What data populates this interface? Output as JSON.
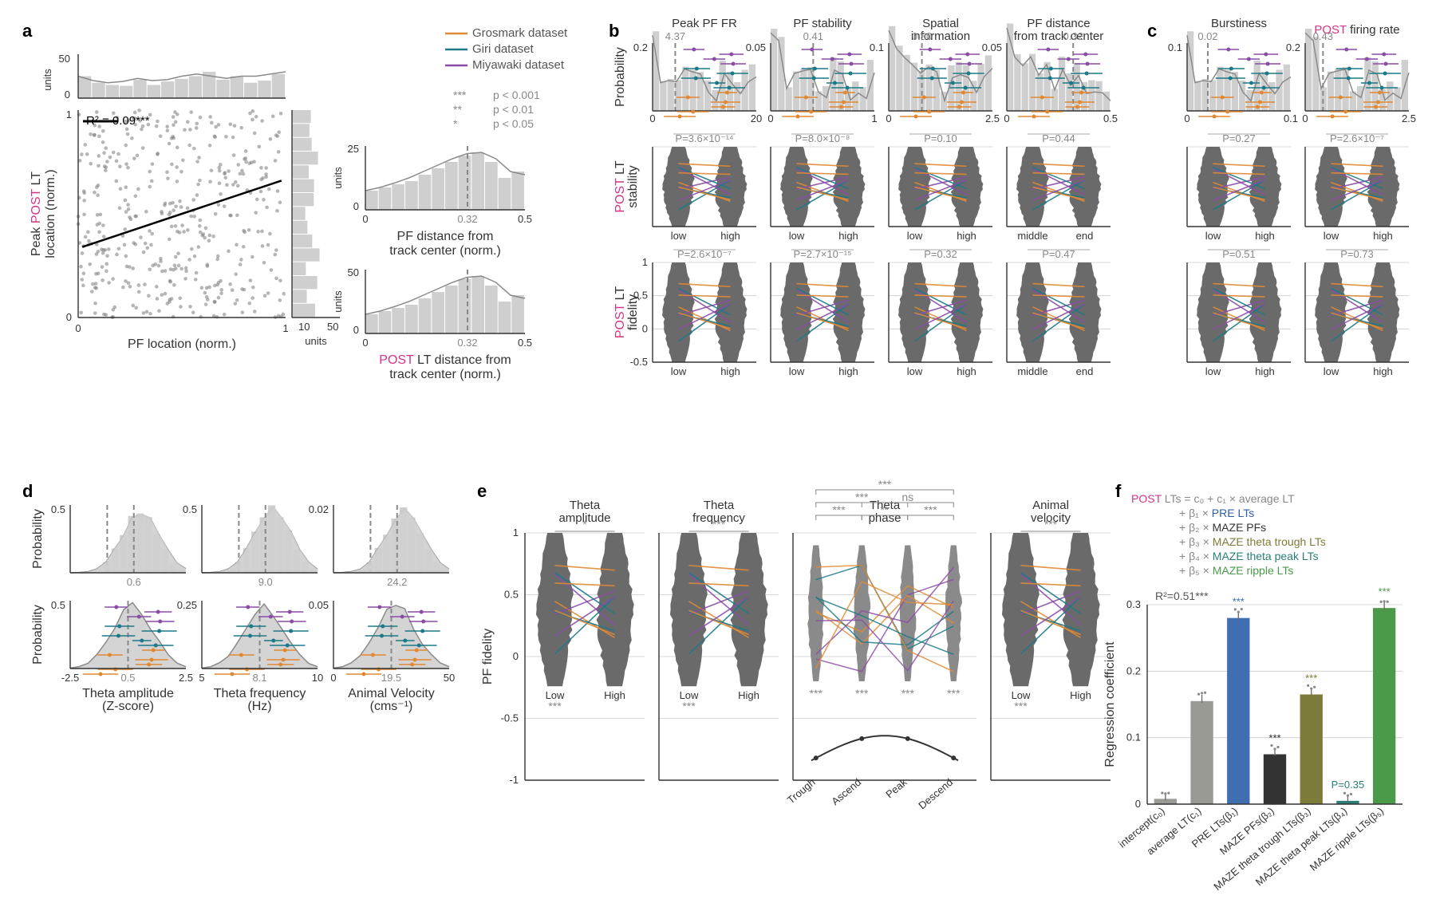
{
  "colors": {
    "grosmark": "#e08934",
    "giri": "#1c7a88",
    "miyawaki": "#8a4da6",
    "post": "#d63384",
    "pre": "#2f5ea8",
    "grey_light": "#cfcfcf",
    "grey_med": "#8a8a8a",
    "grey_dark": "#6a6a6a",
    "bar_grey": "#9a9a94",
    "bar_blue": "#3f6fb0",
    "bar_dark": "#333333",
    "bar_olive": "#7d7b3a",
    "bar_teal": "#2a7f75",
    "bar_green": "#4a9a4a"
  },
  "legend": {
    "items": [
      {
        "label": "Grosmark dataset",
        "color": "#e08934"
      },
      {
        "label": "Giri dataset",
        "color": "#1c7a88"
      },
      {
        "label": "Miyawaki dataset",
        "color": "#8a4da6"
      }
    ],
    "sig_rows": [
      {
        "stars": "***",
        "text": "p < 0.001"
      },
      {
        "stars": "**",
        "text": "p < 0.01"
      },
      {
        "stars": "*",
        "text": "p < 0.05"
      }
    ]
  },
  "panel_a": {
    "label": "a",
    "r2": {
      "value": "R² = 0.09",
      "stars": "***"
    },
    "scatter": {
      "xlabel": "PF location (norm.)",
      "ylabel_pre": "Peak ",
      "ylabel_post": "POST",
      "ylabel_suf": " LT\nlocation (norm.)",
      "xlim": [
        0,
        1
      ],
      "ylim": [
        0,
        1
      ],
      "xticks": [
        0,
        1
      ],
      "yticks": [
        0,
        1
      ],
      "n_points": 420,
      "seed": 7,
      "reg": {
        "x0": 0.02,
        "y0": 0.34,
        "x1": 0.98,
        "y1": 0.66
      }
    },
    "top_marginal": {
      "ymax": 50,
      "label": "units"
    },
    "right_marginal": {
      "xmax": 50,
      "label": "units"
    },
    "side_hists": [
      {
        "xlabel_pre": "PF distance from\ntrack center (norm.)",
        "ymax": 25,
        "ylabel": "units",
        "median": "0.32",
        "xlim": [
          0,
          0.5
        ]
      },
      {
        "xlabel_pre": "POST",
        "xlabel_post": " LT distance from\ntrack center (norm.)",
        "ymax": 50,
        "ylabel": "units",
        "median": "0.32",
        "xlim": [
          0,
          0.5
        ]
      }
    ]
  },
  "panel_b": {
    "label": "b",
    "columns": [
      {
        "title": "Peak PF FR",
        "median": "4.37",
        "xlim": [
          0,
          20
        ],
        "ylim": [
          0,
          0.2
        ],
        "low_high": [
          "low",
          "high"
        ]
      },
      {
        "title": "PF stability",
        "median": "0.41",
        "xlim": [
          0,
          1
        ],
        "ylim": [
          0,
          0.05
        ],
        "low_high": [
          "low",
          "high"
        ]
      },
      {
        "title": "Spatial\ninformation",
        "median": "0.80",
        "xlim": [
          0,
          2.5
        ],
        "ylim": [
          0,
          0.1
        ],
        "low_high": [
          "low",
          "high"
        ]
      },
      {
        "title": "PF distance\nfrom track center",
        "median": "0.32",
        "xlim": [
          0,
          0.5
        ],
        "ylim": [
          0,
          0.05
        ],
        "low_high": [
          "middle",
          "end"
        ]
      }
    ],
    "row2": {
      "ylabel_pre": "POST",
      "ylabel_suf": " LT\nstability",
      "pvals": [
        "P=3.6×10⁻¹⁴",
        "P=8.0×10⁻⁸",
        "P=0.10",
        "P=0.44"
      ]
    },
    "row3": {
      "ylabel_pre": "POST",
      "ylabel_suf": " LT\nfidelity",
      "pvals": [
        "P=2.6×10⁻⁷",
        "P=2.7×10⁻¹⁵",
        "P=0.32",
        "P=0.47"
      ],
      "ylim": [
        -0.5,
        1
      ],
      "yticks": [
        -0.5,
        0,
        0.5,
        1
      ]
    }
  },
  "panel_c": {
    "label": "c",
    "columns": [
      {
        "title": "Burstiness",
        "median": "0.02",
        "xlim": [
          0,
          0.1
        ],
        "ylim": [
          0,
          0.1
        ],
        "low_high": [
          "low",
          "high"
        ]
      },
      {
        "title_pre": "POST",
        "title_suf": " firing rate",
        "median": "0.43",
        "xlim": [
          0,
          2.5
        ],
        "ylim": [
          0,
          0.2
        ],
        "low_high": [
          "low",
          "high"
        ]
      }
    ],
    "row2": {
      "pvals": [
        "P=0.27",
        "P=2.6×10⁻⁷"
      ]
    },
    "row3": {
      "pvals": [
        "P=0.51",
        "P=0.73"
      ],
      "ylim": [
        -0.5,
        1
      ],
      "yticks": [
        -0.5,
        0,
        0.5,
        1
      ]
    }
  },
  "panel_d": {
    "label": "d",
    "top_row": [
      {
        "ylabel": "Probability",
        "median": "0.6",
        "ymax": 0.5
      },
      {
        "median": "9.0",
        "ymax": 0.5
      },
      {
        "median": "24.2",
        "ymax": 0.02
      }
    ],
    "bottom_row": [
      {
        "xlabel": "Theta amplitude\n(Z-score)",
        "median": "0.5",
        "xlim": [
          -2.5,
          2.5
        ],
        "ymax": 0.5,
        "ylabel": "Probability"
      },
      {
        "xlabel": "Theta frequency\n(Hz)",
        "median": "8.1",
        "xlim": [
          5,
          10
        ],
        "ymax": 0.25
      },
      {
        "xlabel": "Animal Velocity\n(cms⁻¹)",
        "median": "19.5",
        "xlim": [
          0,
          50
        ],
        "ymax": 0.05
      }
    ]
  },
  "panel_e": {
    "label": "e",
    "ylabel": "PF fidelity",
    "ylim": [
      -1,
      1
    ],
    "yticks": [
      -1,
      -0.5,
      0,
      0.5,
      1
    ],
    "columns": [
      {
        "title": "Theta\namplitude",
        "cats": [
          "Low",
          "High"
        ],
        "sig": [
          "*",
          "***"
        ]
      },
      {
        "title": "Theta\nfrequency",
        "cats": [
          "Low",
          "High"
        ],
        "sig": [
          "***",
          "***"
        ]
      },
      {
        "title": "Theta\nphase",
        "cats": [
          "Trough",
          "Ascend",
          "Peak",
          "Descend"
        ],
        "brackets": [
          {
            "i": 0,
            "j": 3,
            "lvl": 3,
            "lab": "***"
          },
          {
            "i": 1,
            "j": 3,
            "lvl": 2,
            "lab": "ns"
          },
          {
            "i": 2,
            "j": 3,
            "lvl": 1,
            "lab": "***"
          },
          {
            "i": 0,
            "j": 2,
            "lvl": 2,
            "lab": "***"
          },
          {
            "i": 1,
            "j": 2,
            "lvl": 1,
            "lab": "**"
          },
          {
            "i": 0,
            "j": 1,
            "lvl": 1,
            "lab": "***"
          }
        ],
        "base_sig": [
          "***",
          "***",
          "***",
          "***"
        ],
        "wave": true
      },
      {
        "title": "Animal\nvelocity",
        "cats": [
          "Low",
          "High"
        ],
        "sig": [
          "***",
          "***"
        ]
      }
    ]
  },
  "panel_f": {
    "label": "f",
    "equation": {
      "lhs_pre": "POST",
      "lhs_suf": " LTs = c₀ + c₁ × average LT",
      "terms": [
        {
          "sym": "+ β₁ × ",
          "name": "PRE LTs",
          "color": "#2f5ea8"
        },
        {
          "sym": "+ β₂ × ",
          "name": "MAZE PFs",
          "color": "#333333"
        },
        {
          "sym": "+ β₃ × ",
          "name": "MAZE theta trough LTs",
          "color": "#7d7b3a"
        },
        {
          "sym": "+ β₄ × ",
          "name": "MAZE theta peak LTs",
          "color": "#2a7f75"
        },
        {
          "sym": "+ β₅ × ",
          "name": "MAZE ripple LTs",
          "color": "#4a9a4a"
        }
      ]
    },
    "r2": "R²=0.51***",
    "ylabel": "Regression coefficient",
    "ylim": [
      0,
      0.3
    ],
    "yticks": [
      0,
      0.1,
      0.2,
      0.3
    ],
    "bars": [
      {
        "name": "intercept(c₀)",
        "value": 0.008,
        "color": "#9a9a94",
        "sig": ""
      },
      {
        "name": "average LT(c₁)",
        "value": 0.155,
        "color": "#9a9a94",
        "sig": ""
      },
      {
        "name": "PRE LTs(β₁)",
        "value": 0.28,
        "color": "#3f6fb0",
        "sig": "***",
        "sig_color": "#3f6fb0"
      },
      {
        "name": "MAZE PFs(β₂)",
        "value": 0.075,
        "color": "#333333",
        "sig": "***",
        "sig_color": "#333333"
      },
      {
        "name": "MAZE theta trough LTs(β₃)",
        "value": 0.165,
        "color": "#7d7b3a",
        "sig": "***",
        "sig_color": "#7d7b3a"
      },
      {
        "name": "MAZE theta peak LTs(β₄)",
        "value": 0.005,
        "color": "#2a7f75",
        "sig": "P=0.35",
        "sig_color": "#2a7f75"
      },
      {
        "name": "MAZE ripple LTs(β₅)",
        "value": 0.295,
        "color": "#4a9a4a",
        "sig": "***",
        "sig_color": "#4a9a4a"
      }
    ]
  }
}
